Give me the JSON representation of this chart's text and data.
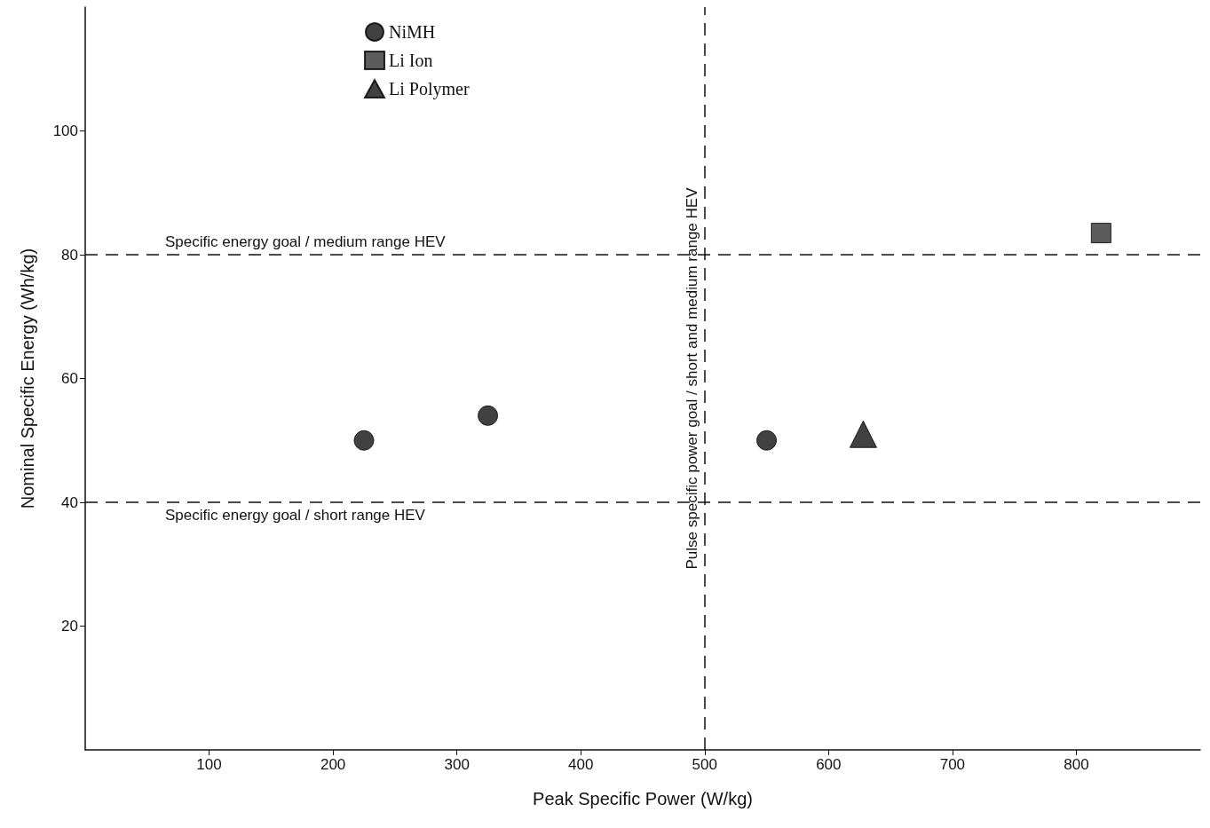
{
  "chart_data": {
    "type": "scatter",
    "xlabel": "Peak Specific Power (W/kg)",
    "ylabel": "Nominal Specific Energy (Wh/kg)",
    "series": [
      {
        "name": "NiMH",
        "color": "#111111",
        "marker": "circle",
        "x": [
          225,
          325,
          550
        ],
        "values": [
          50,
          54,
          50
        ]
      },
      {
        "name": "Li Ion",
        "color": "#333333",
        "marker": "square",
        "x": [
          820
        ],
        "values": [
          83.5
        ]
      },
      {
        "name": "Li Polymer",
        "color": "#111111",
        "marker": "triangle",
        "x": [
          628
        ],
        "values": [
          51
        ]
      }
    ],
    "xlim": [
      0,
      900
    ],
    "xticks": [
      100,
      200,
      300,
      400,
      500,
      600,
      700,
      800
    ],
    "ylim": [
      0,
      120
    ],
    "yticks": [
      20,
      40,
      60,
      80,
      100
    ],
    "ref_lines": [
      {
        "axis": "y",
        "value": 80,
        "label": "Specific energy goal / medium range HEV",
        "line_style": "dashed",
        "color": "#111111"
      },
      {
        "axis": "y",
        "value": 40,
        "label": "Specific energy goal / short range HEV",
        "line_style": "dashed",
        "color": "#111111"
      },
      {
        "axis": "x",
        "value": 500,
        "label": "Pulse specific power goal / short and medium range HEV",
        "line_style": "dashed",
        "color": "#111111"
      }
    ],
    "grid": false,
    "legend": "top left"
  }
}
